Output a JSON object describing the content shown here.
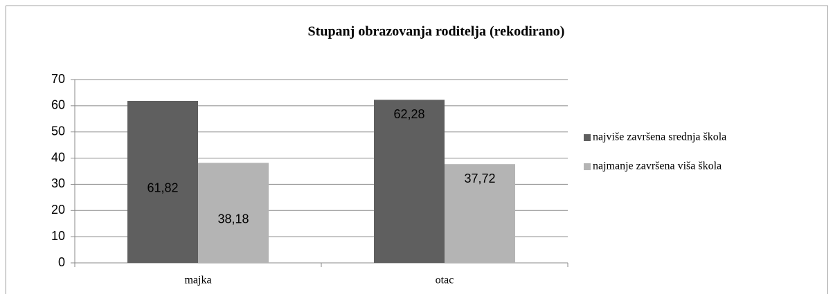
{
  "chart_data": {
    "type": "bar",
    "title": "Stupanj obrazovanja roditelja (rekodirano)",
    "categories": [
      "majka",
      "otac"
    ],
    "series": [
      {
        "name": "najviše završena srednja škola",
        "color": "#5f5f5f",
        "values": [
          61.82,
          62.28
        ],
        "value_labels": [
          "61,82",
          "62,28"
        ]
      },
      {
        "name": "najmanje završena viša škola",
        "color": "#b4b4b4",
        "values": [
          38.18,
          37.72
        ],
        "value_labels": [
          "38,18",
          "37,72"
        ]
      }
    ],
    "ylim": [
      0,
      70
    ],
    "yticks": [
      0,
      10,
      20,
      30,
      40,
      50,
      60,
      70
    ],
    "grid": true,
    "legend": "right"
  }
}
